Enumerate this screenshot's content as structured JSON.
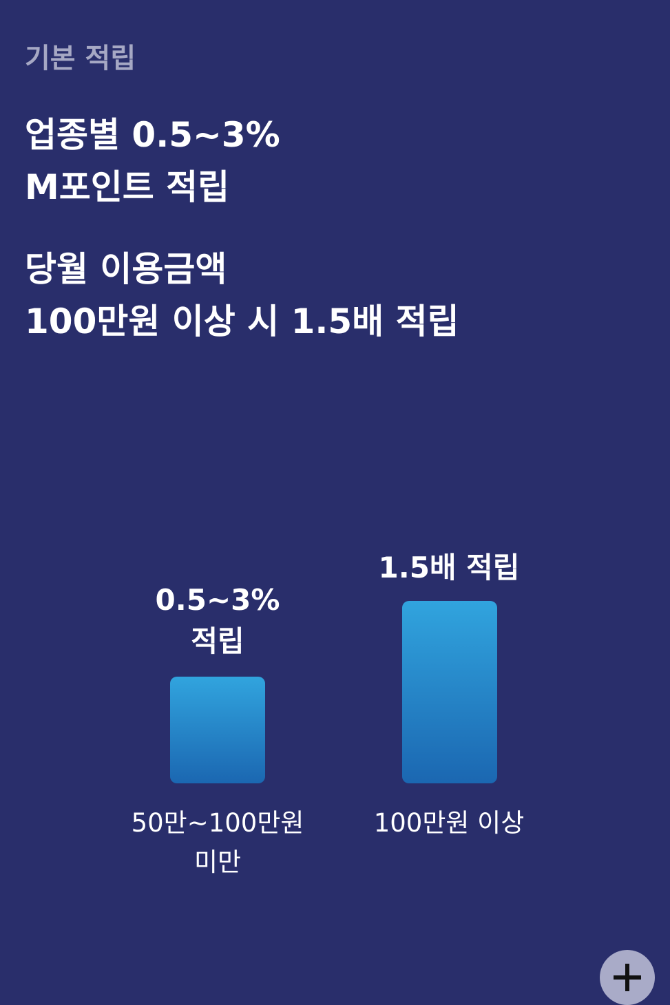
{
  "header": {
    "label": "기본 적립"
  },
  "headline": {
    "lines": [
      "업종별 0.5~3%",
      "M포인트 적립"
    ]
  },
  "subhead": {
    "lines": [
      "당월 이용금액",
      "100만원 이상 시 1.5배 적립"
    ]
  },
  "illustration": {
    "items": [
      {
        "top": [
          "0.5~3%",
          "적립"
        ],
        "bottom": [
          "50만~100만원",
          "미만"
        ]
      },
      {
        "top": [
          "1.5배 적립"
        ],
        "bottom": [
          "100만원 이상"
        ]
      }
    ]
  }
}
